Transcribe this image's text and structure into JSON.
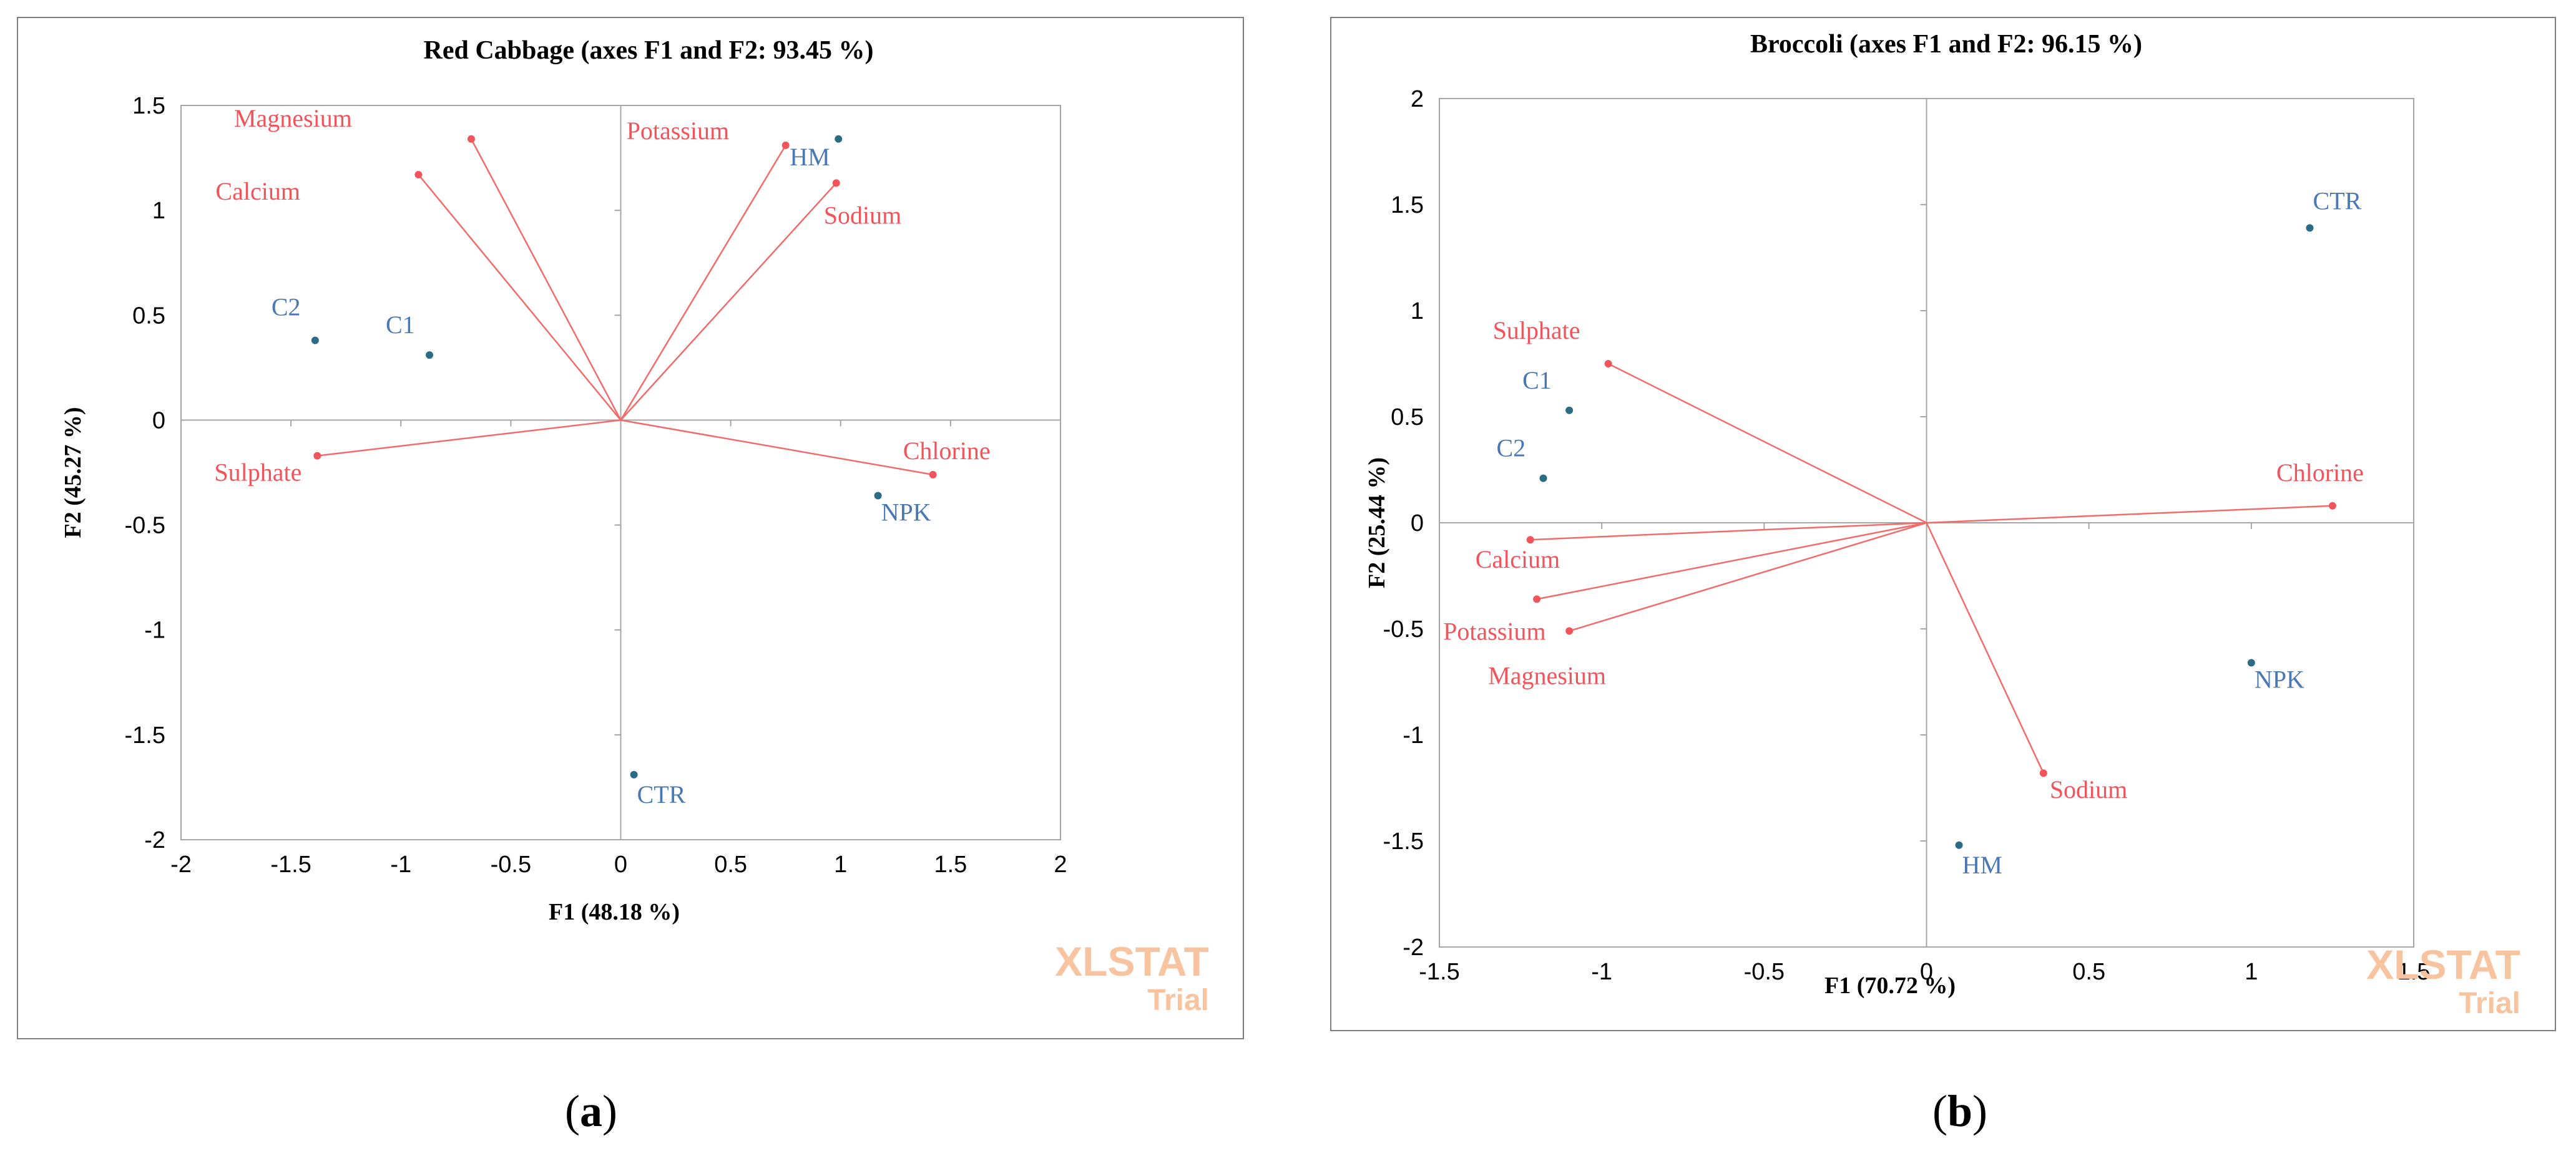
{
  "chart_data": [
    {
      "type": "scatter",
      "subtype": "pca-biplot",
      "title": "Red Cabbage (axes F1 and F2: 93.45 %)",
      "xlabel": "F1 (48.18 %)",
      "ylabel": "F2 (45.27 %)",
      "xlim": [
        -2,
        2
      ],
      "ylim": [
        -2,
        1.5
      ],
      "xticks": [
        -2,
        -1.5,
        -1,
        -0.5,
        0,
        0.5,
        1,
        1.5,
        2
      ],
      "yticks": [
        -2,
        -1.5,
        -1,
        -0.5,
        0,
        0.5,
        1,
        1.5
      ],
      "xtick_labels": [
        "-2",
        "-1.5",
        "-1",
        "-0.5",
        "0",
        "0.5",
        "1",
        "1.5",
        "2"
      ],
      "ytick_labels": [
        "-2",
        "-1.5",
        "-1",
        "-0.5",
        "0",
        "0.5",
        "1",
        "1.5"
      ],
      "grid": false,
      "variables": [
        {
          "name": "Magnesium",
          "x": -0.68,
          "y": 1.34
        },
        {
          "name": "Calcium",
          "x": -0.92,
          "y": 1.17
        },
        {
          "name": "Potassium",
          "x": 0.75,
          "y": 1.31
        },
        {
          "name": "Sodium",
          "x": 0.98,
          "y": 1.13
        },
        {
          "name": "Sulphate",
          "x": -1.38,
          "y": -0.17
        },
        {
          "name": "Chlorine",
          "x": 1.42,
          "y": -0.26
        }
      ],
      "observations": [
        {
          "name": "HM",
          "x": 0.99,
          "y": 1.34
        },
        {
          "name": "C2",
          "x": -1.39,
          "y": 0.38
        },
        {
          "name": "C1",
          "x": -0.87,
          "y": 0.31
        },
        {
          "name": "NPK",
          "x": 1.17,
          "y": -0.36
        },
        {
          "name": "CTR",
          "x": 0.06,
          "y": -1.69
        }
      ],
      "watermark": [
        "XLSTAT",
        "Trial"
      ],
      "sublabel": "a"
    },
    {
      "type": "scatter",
      "subtype": "pca-biplot",
      "title": "Broccoli (axes F1 and F2: 96.15 %)",
      "xlabel": "F1 (70.72 %)",
      "ylabel": "F2 (25.44 %)",
      "xlim": [
        -1.5,
        1.5
      ],
      "ylim": [
        -2,
        2
      ],
      "xticks": [
        -1.5,
        -1,
        -0.5,
        0,
        0.5,
        1,
        1.5
      ],
      "yticks": [
        -2,
        -1.5,
        -1,
        -0.5,
        0,
        0.5,
        1,
        1.5,
        2
      ],
      "xtick_labels": [
        "-1.5",
        "-1",
        "-0.5",
        "0",
        "0.5",
        "1",
        "1.5"
      ],
      "ytick_labels": [
        "-2",
        "-1.5",
        "-1",
        "-0.5",
        "0",
        "0.5",
        "1",
        "1.5",
        "2"
      ],
      "grid": false,
      "variables": [
        {
          "name": "Sulphate",
          "x": -0.98,
          "y": 0.75
        },
        {
          "name": "Chlorine",
          "x": 1.25,
          "y": 0.08
        },
        {
          "name": "Calcium",
          "x": -1.22,
          "y": -0.08
        },
        {
          "name": "Potassium",
          "x": -1.2,
          "y": -0.36
        },
        {
          "name": "Magnesium",
          "x": -1.1,
          "y": -0.51
        },
        {
          "name": "Sodium",
          "x": 0.36,
          "y": -1.18
        }
      ],
      "observations": [
        {
          "name": "CTR",
          "x": 1.18,
          "y": 1.39
        },
        {
          "name": "C1",
          "x": -1.1,
          "y": 0.53
        },
        {
          "name": "C2",
          "x": -1.18,
          "y": 0.21
        },
        {
          "name": "NPK",
          "x": 1.0,
          "y": -0.66
        },
        {
          "name": "HM",
          "x": 0.1,
          "y": -1.52
        }
      ],
      "watermark": [
        "XLSTAT",
        "Trial"
      ],
      "sublabel": "b"
    }
  ],
  "colors": {
    "variable": "#f2545b",
    "variable_line": "#f26b6b",
    "observation_text": "#4a78b5",
    "observation_point": "#2a6b87",
    "axis": "#a6a6a6",
    "watermark": "#f8c4a0"
  }
}
